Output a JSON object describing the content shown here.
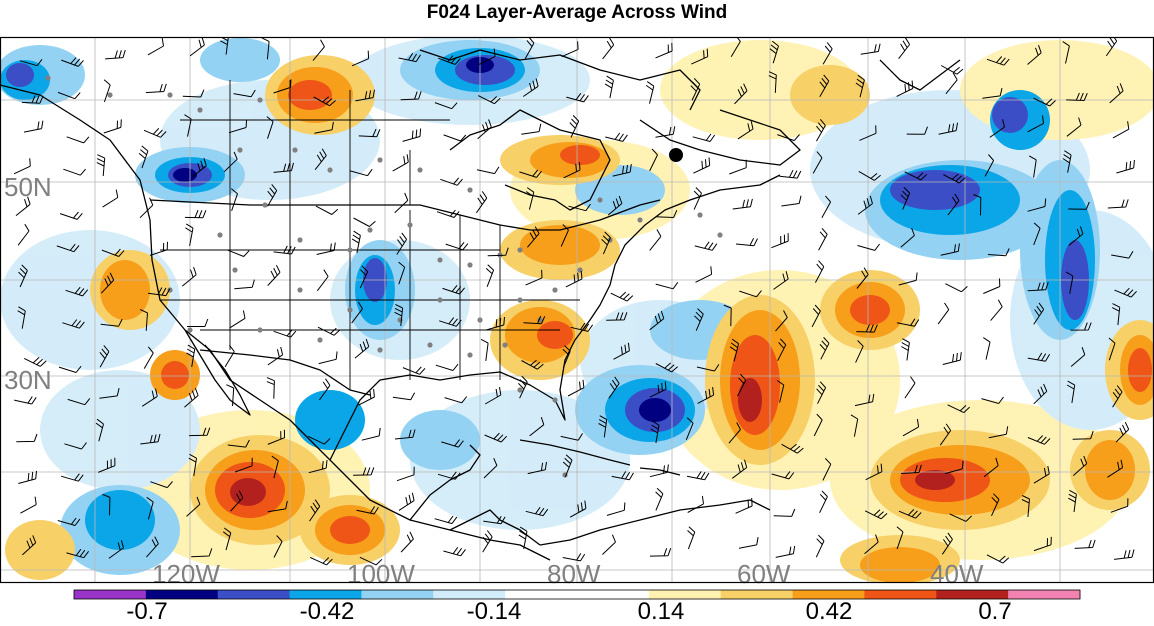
{
  "title": "F024 Layer-Average Across Wind",
  "latitude_labels": [
    "50N",
    "30N"
  ],
  "longitude_labels": [
    "120W",
    "100W",
    "80W",
    "60W",
    "40W"
  ],
  "colorbar": {
    "colors": [
      "#9a34c8",
      "#000080",
      "#3c4ec6",
      "#0aa6e8",
      "#94d2f4",
      "#d2ecf9",
      "#ffffff",
      "#ffffff",
      "#fff2b0",
      "#f7d067",
      "#f79e1a",
      "#ee5516",
      "#b3211e",
      "#f283b1"
    ],
    "tick_labels": [
      "-0.7",
      "-0.42",
      "-0.14",
      "0.14",
      "0.42",
      "0.7"
    ]
  }
}
